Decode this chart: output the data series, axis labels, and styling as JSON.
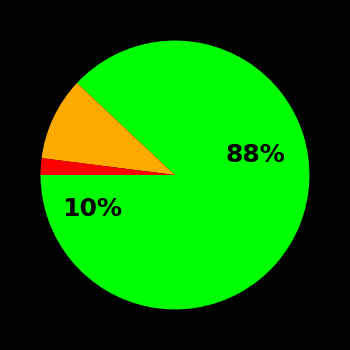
{
  "slices": [
    88,
    10,
    2
  ],
  "colors": [
    "#00ff00",
    "#ffaa00",
    "#ff0000"
  ],
  "labels": [
    "88%",
    "10%",
    ""
  ],
  "background_color": "#000000",
  "startangle": 180,
  "counterclock": true,
  "label_positions": [
    [
      0.6,
      0.15
    ],
    [
      -0.62,
      -0.25
    ],
    [
      null,
      null
    ]
  ],
  "figsize": [
    3.5,
    3.5
  ],
  "dpi": 100,
  "label_fontsize": 18,
  "label_fontweight": "bold"
}
